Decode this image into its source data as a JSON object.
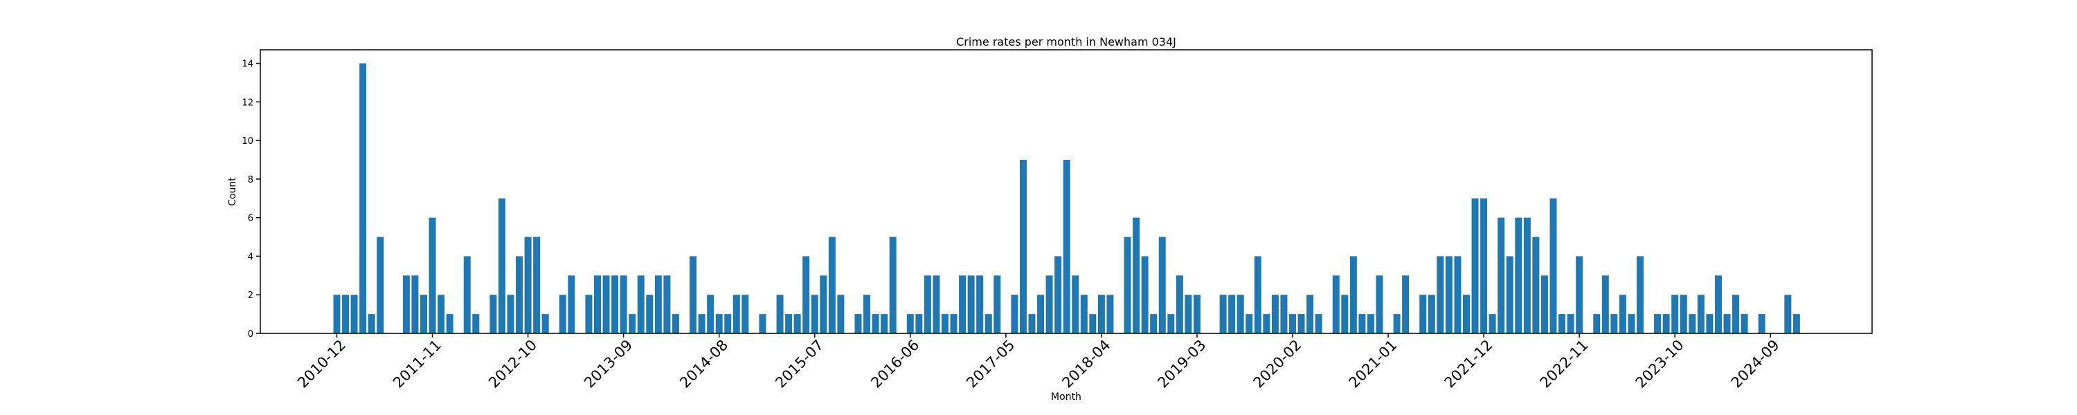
{
  "chart_data": {
    "type": "bar",
    "title": "Crime rates per month in Newham 034J",
    "xlabel": "Month",
    "ylabel": "Count",
    "color": "#1f77b4",
    "ylim": [
      0,
      14.7
    ],
    "yticks": [
      0,
      2,
      4,
      6,
      8,
      10,
      12,
      14
    ],
    "xtick_labels": [
      "2010-12",
      "2011-11",
      "2012-10",
      "2013-09",
      "2014-08",
      "2015-07",
      "2016-06",
      "2017-05",
      "2018-04",
      "2019-03",
      "2020-02",
      "2021-01",
      "2021-12",
      "2022-11",
      "2023-10",
      "2024-09"
    ],
    "start_month": "2010-12",
    "values": [
      2,
      2,
      2,
      14,
      1,
      5,
      0,
      0,
      3,
      3,
      2,
      6,
      2,
      1,
      0,
      4,
      1,
      0,
      2,
      7,
      2,
      4,
      5,
      5,
      1,
      0,
      2,
      3,
      0,
      2,
      3,
      3,
      3,
      3,
      1,
      3,
      2,
      3,
      3,
      1,
      0,
      4,
      1,
      2,
      1,
      1,
      2,
      2,
      0,
      1,
      0,
      2,
      1,
      1,
      4,
      2,
      3,
      5,
      2,
      0,
      1,
      2,
      1,
      1,
      5,
      0,
      1,
      1,
      3,
      3,
      1,
      1,
      3,
      3,
      3,
      1,
      3,
      0,
      2,
      9,
      1,
      2,
      3,
      4,
      9,
      3,
      2,
      1,
      2,
      2,
      0,
      5,
      6,
      4,
      1,
      5,
      1,
      3,
      2,
      2,
      0,
      0,
      2,
      2,
      2,
      1,
      4,
      1,
      2,
      2,
      1,
      1,
      2,
      1,
      0,
      3,
      2,
      4,
      1,
      1,
      3,
      0,
      1,
      3,
      0,
      2,
      2,
      4,
      4,
      4,
      2,
      7,
      7,
      1,
      6,
      4,
      6,
      6,
      5,
      3,
      7,
      1,
      1,
      4,
      0,
      1,
      3,
      1,
      2,
      1,
      4,
      0,
      1,
      1,
      2,
      2,
      1,
      2,
      1,
      3,
      1,
      2,
      1,
      0,
      1,
      0,
      0,
      2,
      1
    ]
  }
}
